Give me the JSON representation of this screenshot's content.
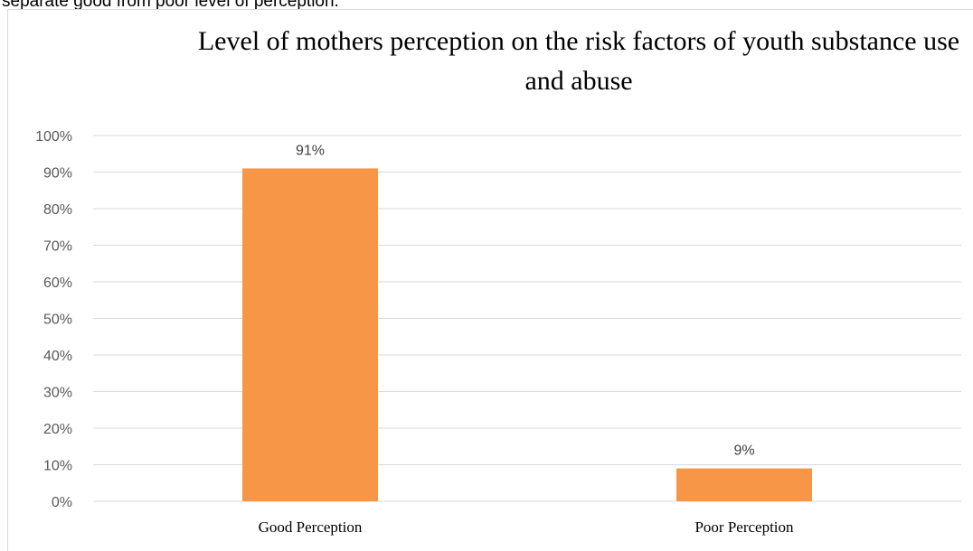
{
  "page": {
    "top_text": "separate good from poor level of perception."
  },
  "chart_data": {
    "type": "bar",
    "title": "Level of mothers perception on the risk factors of youth substance use and abuse",
    "categories": [
      "Good Perception",
      "Poor Perception"
    ],
    "values": [
      91,
      9
    ],
    "data_labels": [
      "91%",
      "9%"
    ],
    "xlabel": "",
    "ylabel": "",
    "ylim": [
      0,
      100
    ],
    "yticks": [
      "0%",
      "10%",
      "20%",
      "30%",
      "40%",
      "50%",
      "60%",
      "70%",
      "80%",
      "90%",
      "100%"
    ],
    "grid": true,
    "legend": "none",
    "bar_color": "#F79646",
    "grid_color": "#D9D9D9"
  }
}
